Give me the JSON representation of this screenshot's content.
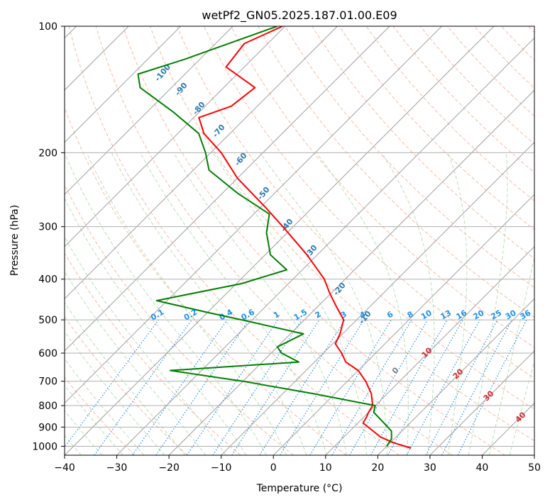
{
  "chart_data": {
    "type": "line",
    "title": "wetPf2_GN05.2025.187.01.00.E09",
    "xlabel": "Temperature (°C)",
    "ylabel": "Pressure (hPa)",
    "xlim": [
      -40,
      50
    ],
    "ylim": [
      1050,
      100
    ],
    "y_scale": "log",
    "x_ticks": [
      "−40",
      "−30",
      "−20",
      "−10",
      "0",
      "10",
      "20",
      "30",
      "40",
      "50"
    ],
    "x_tick_values": [
      -40,
      -30,
      -20,
      -10,
      0,
      10,
      20,
      30,
      40,
      50
    ],
    "y_ticks": [
      "100",
      "200",
      "300",
      "400",
      "500",
      "600",
      "700",
      "800",
      "900",
      "1000"
    ],
    "y_tick_values": [
      100,
      200,
      300,
      400,
      500,
      600,
      700,
      800,
      900,
      1000
    ],
    "grid": true,
    "skew": "skew-T",
    "colors": {
      "temperature": "#ff0000",
      "dewpoint": "#008000",
      "isotherm": "#a0a0a0",
      "dry_adiabat": "#f4a582",
      "moist_adiabat": "#a6d8a0",
      "mixing_ratio": "#1f8fe8",
      "dry_adiabat_label": "#2a7ab4",
      "moist_adiabat_label": "#d62728"
    },
    "series": [
      {
        "role": "temperature",
        "points": [
          {
            "p": 100,
            "t": -80.5
          },
          {
            "p": 110,
            "t": -84.5
          },
          {
            "p": 125,
            "t": -83.5
          },
          {
            "p": 140,
            "t": -74
          },
          {
            "p": 155,
            "t": -75
          },
          {
            "p": 165,
            "t": -79
          },
          {
            "p": 180,
            "t": -75
          },
          {
            "p": 200,
            "t": -68
          },
          {
            "p": 230,
            "t": -60
          },
          {
            "p": 270,
            "t": -49
          },
          {
            "p": 300,
            "t": -42
          },
          {
            "p": 350,
            "t": -32
          },
          {
            "p": 400,
            "t": -24
          },
          {
            "p": 430,
            "t": -20.5
          },
          {
            "p": 460,
            "t": -17
          },
          {
            "p": 500,
            "t": -12.5
          },
          {
            "p": 540,
            "t": -10.5
          },
          {
            "p": 570,
            "t": -9.5
          },
          {
            "p": 600,
            "t": -6.5
          },
          {
            "p": 630,
            "t": -4
          },
          {
            "p": 660,
            "t": 0
          },
          {
            "p": 700,
            "t": 3.5
          },
          {
            "p": 750,
            "t": 7
          },
          {
            "p": 800,
            "t": 9.5
          },
          {
            "p": 830,
            "t": 10
          },
          {
            "p": 850,
            "t": 10.5
          },
          {
            "p": 880,
            "t": 11
          },
          {
            "p": 920,
            "t": 14.5
          },
          {
            "p": 950,
            "t": 17
          },
          {
            "p": 980,
            "t": 20.5
          },
          {
            "p": 1010,
            "t": 25
          }
        ]
      },
      {
        "role": "dewpoint",
        "points": [
          {
            "p": 100,
            "t": -81.5
          },
          {
            "p": 120,
            "t": -93
          },
          {
            "p": 130,
            "t": -99
          },
          {
            "p": 140,
            "t": -96
          },
          {
            "p": 160,
            "t": -85
          },
          {
            "p": 180,
            "t": -76
          },
          {
            "p": 200,
            "t": -71
          },
          {
            "p": 220,
            "t": -67
          },
          {
            "p": 250,
            "t": -57
          },
          {
            "p": 280,
            "t": -47
          },
          {
            "p": 310,
            "t": -44
          },
          {
            "p": 350,
            "t": -39
          },
          {
            "p": 380,
            "t": -33
          },
          {
            "p": 410,
            "t": -39
          },
          {
            "p": 450,
            "t": -52
          },
          {
            "p": 480,
            "t": -40
          },
          {
            "p": 500,
            "t": -32
          },
          {
            "p": 540,
            "t": -17.5
          },
          {
            "p": 580,
            "t": -20
          },
          {
            "p": 600,
            "t": -18
          },
          {
            "p": 630,
            "t": -13
          },
          {
            "p": 660,
            "t": -36
          },
          {
            "p": 700,
            "t": -20
          },
          {
            "p": 750,
            "t": -4
          },
          {
            "p": 800,
            "t": 10
          },
          {
            "p": 830,
            "t": 11
          },
          {
            "p": 880,
            "t": 15
          },
          {
            "p": 920,
            "t": 18
          },
          {
            "p": 960,
            "t": 19.5
          },
          {
            "p": 1000,
            "t": 20
          }
        ]
      }
    ],
    "annotations": {
      "dry_adiabat_labels": [
        "-100",
        "-90",
        "-80",
        "-70",
        "-60",
        "-50",
        "-40",
        "-30",
        "-20",
        "-10",
        "0"
      ],
      "moist_adiabat_labels": [
        "10",
        "20",
        "30",
        "40"
      ],
      "mixing_ratio_labels": [
        "0.1",
        "0.2",
        "0.4",
        "0.6",
        "1",
        "1.5",
        "2",
        "3",
        "4",
        "6",
        "8",
        "10",
        "13",
        "16",
        "20",
        "25",
        "30",
        "36"
      ],
      "mixing_ratio_values": [
        0.1,
        0.2,
        0.4,
        0.6,
        1,
        1.5,
        2,
        3,
        4,
        6,
        8,
        10,
        13,
        16,
        20,
        25,
        30,
        36
      ]
    }
  }
}
